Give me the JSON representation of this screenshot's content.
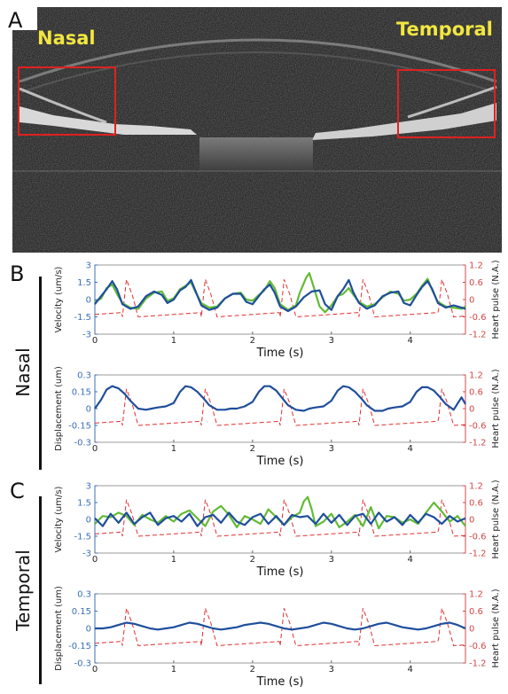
{
  "panels": {
    "a": {
      "letter": "A",
      "label_left": "Nasal",
      "label_right": "Temporal"
    },
    "b": {
      "letter": "B",
      "side_label": "Nasal"
    },
    "c": {
      "letter": "C",
      "side_label": "Temporal"
    }
  },
  "colors": {
    "series_green": "#62bb35",
    "series_blue": "#1f4e9c",
    "heart_pulse": "#e03030",
    "right_axis": "#d04848",
    "left_axis": "#3a6fb5",
    "oct_label": "#f2e640",
    "roi_box": "#e02020"
  },
  "chart_data": [
    {
      "id": "B-velocity",
      "type": "line",
      "xlabel": "Time (s)",
      "ylabel": "Velocity (um/s)",
      "ylabel_right": "Heart pulse (N.A.)",
      "xlim": [
        0,
        4.7
      ],
      "ylim": [
        -3,
        3
      ],
      "ylim_right": [
        -1.2,
        1.2
      ],
      "xticks": [
        "0",
        "1",
        "2",
        "3",
        "4"
      ],
      "yticks": [
        "-3",
        "-1.5",
        "0",
        "1.5",
        "3"
      ],
      "yticks_right": [
        "-1.2",
        "-0.6",
        "0",
        "0.6",
        "1.2"
      ],
      "pulse_period": 1,
      "pulse_phase": 0.35,
      "series": [
        {
          "color": "green",
          "x": [
            0,
            0.08,
            0.15,
            0.22,
            0.28,
            0.35,
            0.45,
            0.55,
            0.65,
            0.75,
            0.85,
            0.92,
            1.0,
            1.08,
            1.15,
            1.22,
            1.28,
            1.35,
            1.45,
            1.55,
            1.65,
            1.75,
            1.85,
            1.92,
            2.0,
            2.08,
            2.15,
            2.22,
            2.28,
            2.35,
            2.45,
            2.55,
            2.6,
            2.68,
            2.72,
            2.78,
            2.85,
            2.92,
            3.0,
            3.08,
            3.15,
            3.22,
            3.28,
            3.35,
            3.45,
            3.55,
            3.65,
            3.75,
            3.85,
            3.92,
            4.0,
            4.08,
            4.15,
            4.22,
            4.28,
            4.35,
            4.45,
            4.55,
            4.65,
            4.7
          ],
          "y": [
            -0.2,
            0.1,
            1.0,
            1.3,
            0.5,
            -0.3,
            -0.7,
            -0.8,
            0.1,
            0.6,
            0.7,
            -0.1,
            0.1,
            0.9,
            1.2,
            1.5,
            0.6,
            -0.3,
            -0.7,
            -0.6,
            0.1,
            0.5,
            0.6,
            0.0,
            -0.1,
            0.4,
            0.8,
            1.6,
            1.0,
            -0.4,
            -0.9,
            -0.5,
            0.6,
            1.9,
            2.3,
            1.0,
            -0.6,
            -1.1,
            -0.5,
            0.3,
            0.5,
            1.0,
            0.4,
            -0.2,
            -0.6,
            -0.4,
            0.2,
            0.7,
            0.5,
            -0.1,
            0.0,
            0.5,
            1.2,
            1.8,
            0.8,
            -0.2,
            -0.6,
            -0.7,
            -0.8,
            -0.6
          ]
        },
        {
          "color": "blue",
          "x": [
            0,
            0.08,
            0.15,
            0.22,
            0.28,
            0.35,
            0.45,
            0.55,
            0.65,
            0.75,
            0.85,
            0.92,
            1.0,
            1.08,
            1.15,
            1.22,
            1.28,
            1.35,
            1.45,
            1.55,
            1.65,
            1.75,
            1.85,
            1.92,
            2.0,
            2.08,
            2.15,
            2.22,
            2.28,
            2.35,
            2.45,
            2.55,
            2.65,
            2.75,
            2.85,
            2.92,
            3.0,
            3.08,
            3.15,
            3.22,
            3.28,
            3.35,
            3.45,
            3.55,
            3.65,
            3.75,
            3.85,
            3.92,
            4.0,
            4.08,
            4.15,
            4.22,
            4.28,
            4.35,
            4.45,
            4.55,
            4.65,
            4.7
          ],
          "y": [
            -0.4,
            0.3,
            0.9,
            1.6,
            0.9,
            -0.4,
            -0.8,
            -0.6,
            0.3,
            0.7,
            0.4,
            -0.3,
            0.0,
            0.8,
            1.1,
            1.7,
            0.7,
            -0.5,
            -0.9,
            -0.7,
            0.1,
            0.5,
            0.5,
            -0.2,
            -0.4,
            0.3,
            0.9,
            1.3,
            0.6,
            -0.6,
            -1.0,
            -0.6,
            0.2,
            0.7,
            0.8,
            -0.4,
            -0.9,
            0.3,
            0.9,
            1.7,
            0.6,
            -0.3,
            -0.8,
            -0.5,
            0.3,
            0.6,
            0.7,
            -0.3,
            -0.5,
            0.4,
            1.1,
            1.6,
            0.9,
            -0.3,
            -0.7,
            -0.5,
            -0.7,
            -0.8
          ]
        }
      ]
    },
    {
      "id": "B-displacement",
      "type": "line",
      "xlabel": "Time (s)",
      "ylabel": "Displacement (um)",
      "ylabel_right": "Heart pulse (N.A.)",
      "xlim": [
        0,
        4.7
      ],
      "ylim": [
        -0.3,
        0.3
      ],
      "ylim_right": [
        -1.2,
        1.2
      ],
      "xticks": [
        "0",
        "1",
        "2",
        "3",
        "4"
      ],
      "yticks": [
        "-0.3",
        "-0.15",
        "0",
        "0.15",
        "0.3"
      ],
      "yticks_right": [
        "-1.2",
        "-0.6",
        "0",
        "0.6",
        "1.2"
      ],
      "pulse_period": 1,
      "pulse_phase": 0.35,
      "series": [
        {
          "color": "blue",
          "x": [
            0,
            0.08,
            0.15,
            0.22,
            0.3,
            0.38,
            0.45,
            0.55,
            0.65,
            0.72,
            0.8,
            0.9,
            1.0,
            1.08,
            1.15,
            1.22,
            1.3,
            1.38,
            1.45,
            1.55,
            1.65,
            1.72,
            1.8,
            1.9,
            2.0,
            2.08,
            2.15,
            2.22,
            2.3,
            2.38,
            2.45,
            2.55,
            2.65,
            2.72,
            2.8,
            2.9,
            3.0,
            3.08,
            3.15,
            3.22,
            3.3,
            3.38,
            3.45,
            3.55,
            3.65,
            3.72,
            3.8,
            3.9,
            4.0,
            4.08,
            4.15,
            4.22,
            4.3,
            4.38,
            4.45,
            4.55,
            4.65,
            4.7
          ],
          "y": [
            0.0,
            0.08,
            0.17,
            0.2,
            0.18,
            0.13,
            0.07,
            0.0,
            -0.01,
            0.0,
            0.01,
            0.02,
            0.05,
            0.15,
            0.2,
            0.19,
            0.15,
            0.09,
            0.03,
            -0.01,
            -0.01,
            0.0,
            0.0,
            0.02,
            0.06,
            0.15,
            0.2,
            0.2,
            0.16,
            0.09,
            0.03,
            -0.01,
            -0.02,
            0.0,
            0.01,
            0.02,
            0.07,
            0.16,
            0.2,
            0.19,
            0.15,
            0.09,
            0.03,
            -0.02,
            -0.02,
            0.0,
            0.01,
            0.02,
            0.06,
            0.15,
            0.19,
            0.19,
            0.16,
            0.1,
            0.04,
            -0.01,
            0.1,
            0.04
          ]
        }
      ]
    },
    {
      "id": "C-velocity",
      "type": "line",
      "xlabel": "Time (s)",
      "ylabel": "Velocity (um/s)",
      "ylabel_right": "Heart pulse (N.A.)",
      "xlim": [
        0,
        4.7
      ],
      "ylim": [
        -3,
        3
      ],
      "ylim_right": [
        -1.2,
        1.2
      ],
      "xticks": [
        "0",
        "1",
        "2",
        "3",
        "4"
      ],
      "yticks": [
        "-3",
        "-1.5",
        "0",
        "1.5",
        "3"
      ],
      "yticks_right": [
        "-1.2",
        "-0.6",
        "0",
        "0.6",
        "1.2"
      ],
      "pulse_period": 1,
      "pulse_phase": 0.35,
      "series": [
        {
          "color": "green",
          "x": [
            0,
            0.1,
            0.2,
            0.3,
            0.4,
            0.5,
            0.6,
            0.7,
            0.8,
            0.9,
            1.0,
            1.1,
            1.2,
            1.3,
            1.4,
            1.5,
            1.6,
            1.7,
            1.8,
            1.9,
            2.0,
            2.1,
            2.2,
            2.3,
            2.4,
            2.5,
            2.6,
            2.65,
            2.7,
            2.75,
            2.8,
            2.9,
            3.0,
            3.1,
            3.2,
            3.3,
            3.4,
            3.5,
            3.6,
            3.7,
            3.8,
            3.9,
            4.0,
            4.1,
            4.2,
            4.3,
            4.4,
            4.5,
            4.6,
            4.7
          ],
          "y": [
            -0.4,
            0.3,
            0.2,
            0.6,
            0.3,
            -0.5,
            0.4,
            0.0,
            -0.3,
            0.3,
            -0.2,
            0.5,
            0.8,
            0.1,
            -0.6,
            0.7,
            1.2,
            0.4,
            -0.7,
            0.3,
            0.0,
            -0.4,
            0.9,
            0.2,
            -0.5,
            0.2,
            0.6,
            1.6,
            2.0,
            0.9,
            -0.6,
            -0.2,
            0.5,
            -0.7,
            -0.2,
            0.4,
            -0.6,
            1.1,
            -0.8,
            0.3,
            0.2,
            -0.3,
            0.0,
            -0.4,
            0.6,
            1.5,
            0.7,
            -0.2,
            0.3,
            -0.6
          ]
        },
        {
          "color": "blue",
          "x": [
            0,
            0.1,
            0.2,
            0.3,
            0.4,
            0.5,
            0.6,
            0.7,
            0.8,
            0.9,
            1.0,
            1.1,
            1.2,
            1.3,
            1.4,
            1.5,
            1.6,
            1.7,
            1.8,
            1.9,
            2.0,
            2.1,
            2.2,
            2.3,
            2.4,
            2.5,
            2.6,
            2.7,
            2.8,
            2.9,
            3.0,
            3.1,
            3.2,
            3.3,
            3.4,
            3.5,
            3.6,
            3.7,
            3.8,
            3.9,
            4.0,
            4.1,
            4.2,
            4.3,
            4.4,
            4.5,
            4.6,
            4.7
          ],
          "y": [
            0.1,
            -0.6,
            0.5,
            -0.3,
            0.6,
            -0.4,
            0.2,
            0.6,
            -0.5,
            0.1,
            0.3,
            -0.2,
            0.5,
            -0.6,
            0.2,
            0.4,
            -0.3,
            0.6,
            -0.2,
            -0.5,
            0.2,
            0.5,
            -0.4,
            0.3,
            -0.5,
            0.4,
            0.2,
            0.3,
            -0.4,
            0.5,
            -0.3,
            0.4,
            -0.5,
            0.3,
            0.5,
            -0.4,
            0.6,
            -0.2,
            0.2,
            -0.5,
            0.4,
            -0.3,
            0.5,
            0.2,
            -0.4,
            0.3,
            -0.2,
            0.1
          ]
        }
      ]
    },
    {
      "id": "C-displacement",
      "type": "line",
      "xlabel": "Time (s)",
      "ylabel": "Displacement (um)",
      "ylabel_right": "Heart pulse (N.A.)",
      "xlim": [
        0,
        4.7
      ],
      "ylim": [
        -0.3,
        0.3
      ],
      "ylim_right": [
        -1.2,
        1.2
      ],
      "xticks": [
        "0",
        "1",
        "2",
        "3",
        "4"
      ],
      "yticks": [
        "-0.3",
        "-0.15",
        "0",
        "0.15",
        "0.3"
      ],
      "yticks_right": [
        "-1.2",
        "-0.6",
        "0",
        "0.6",
        "1.2"
      ],
      "pulse_period": 1,
      "pulse_phase": 0.35,
      "series": [
        {
          "color": "blue",
          "x": [
            0,
            0.1,
            0.2,
            0.3,
            0.4,
            0.5,
            0.6,
            0.7,
            0.8,
            0.9,
            1.0,
            1.1,
            1.2,
            1.3,
            1.4,
            1.5,
            1.6,
            1.7,
            1.8,
            1.9,
            2.0,
            2.1,
            2.2,
            2.3,
            2.4,
            2.5,
            2.6,
            2.7,
            2.8,
            2.9,
            3.0,
            3.1,
            3.2,
            3.3,
            3.4,
            3.5,
            3.6,
            3.7,
            3.8,
            3.9,
            4.0,
            4.1,
            4.2,
            4.3,
            4.4,
            4.5,
            4.6,
            4.7
          ],
          "y": [
            0.0,
            0.0,
            0.01,
            0.03,
            0.05,
            0.04,
            0.02,
            0.0,
            -0.01,
            0.0,
            0.01,
            0.03,
            0.05,
            0.04,
            0.02,
            0.0,
            -0.01,
            0.0,
            0.01,
            0.03,
            0.04,
            0.05,
            0.04,
            0.02,
            0.0,
            -0.01,
            0.0,
            0.01,
            0.03,
            0.05,
            0.04,
            0.02,
            0.0,
            -0.01,
            0.0,
            0.02,
            0.04,
            0.05,
            0.03,
            0.01,
            0.0,
            -0.01,
            0.0,
            0.02,
            0.04,
            0.05,
            0.03,
            0.0
          ]
        }
      ]
    }
  ]
}
